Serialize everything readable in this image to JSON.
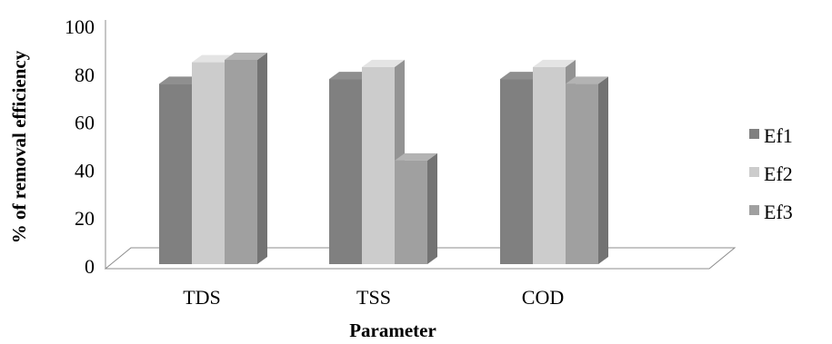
{
  "chart_data": {
    "type": "bar",
    "style": "3d-clustered-column",
    "categories": [
      "TDS",
      "TSS",
      "COD"
    ],
    "series": [
      {
        "name": "Ef1",
        "values": [
          76,
          78,
          78
        ],
        "color": "#808080"
      },
      {
        "name": "Ef2",
        "values": [
          85,
          83,
          83
        ],
        "color": "#cccccc"
      },
      {
        "name": "Ef3",
        "values": [
          86,
          44,
          76
        ],
        "color": "#a0a0a0"
      }
    ],
    "xlabel": "Parameter",
    "ylabel": "% of removal efficiency",
    "ylim": [
      0,
      100
    ],
    "yticks": [
      0,
      20,
      40,
      60,
      80,
      100
    ],
    "grid": false,
    "legend_position": "right"
  }
}
